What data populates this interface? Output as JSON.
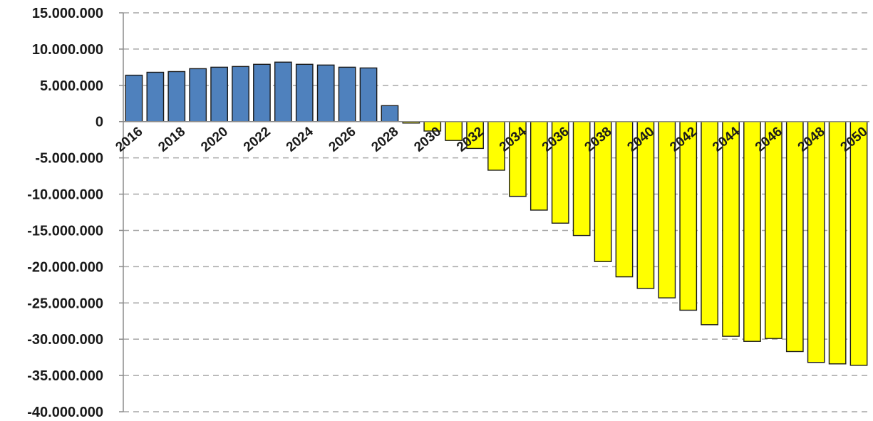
{
  "chart_data": {
    "type": "bar",
    "title": "",
    "xlabel": "",
    "ylabel": "",
    "ylim": [
      -40000000,
      15000000
    ],
    "yticks": [
      15000000,
      10000000,
      5000000,
      0,
      -5000000,
      -10000000,
      -15000000,
      -20000000,
      -25000000,
      -30000000,
      -35000000,
      -40000000
    ],
    "ytick_labels": [
      "15.000.000",
      "10.000.000",
      "5.000.000",
      "0",
      "-5.000.000",
      "-10.000.000",
      "-15.000.000",
      "-20.000.000",
      "-25.000.000",
      "-30.000.000",
      "-35.000.000",
      "-40.000.000"
    ],
    "xtick_labels": [
      "2016",
      "2018",
      "2020",
      "2022",
      "2024",
      "2026",
      "2028",
      "2030",
      "2032",
      "2034",
      "2036",
      "2038",
      "2040",
      "2042",
      "2044",
      "2046",
      "2048",
      "2050"
    ],
    "grid": true,
    "legend": "none",
    "positive_color": "#4f81bd",
    "negative_color": "#ffff00",
    "categories": [
      "2016",
      "2017",
      "2018",
      "2019",
      "2020",
      "2021",
      "2022",
      "2023",
      "2024",
      "2025",
      "2026",
      "2027",
      "2028",
      "2029",
      "2030",
      "2031",
      "2032",
      "2033",
      "2034",
      "2035",
      "2036",
      "2037",
      "2038",
      "2039",
      "2040",
      "2041",
      "2042",
      "2043",
      "2044",
      "2045",
      "2046",
      "2047",
      "2048",
      "2049",
      "2050"
    ],
    "values": [
      6400000,
      6800000,
      6900000,
      7300000,
      7500000,
      7600000,
      7900000,
      8200000,
      7900000,
      7800000,
      7500000,
      7400000,
      2200000,
      -200000,
      -1300000,
      -2600000,
      -3700000,
      -6700000,
      -10300000,
      -12200000,
      -14000000,
      -15700000,
      -19300000,
      -21400000,
      -23000000,
      -24300000,
      -26000000,
      -28000000,
      -29600000,
      -30300000,
      -29900000,
      -31700000,
      -33200000,
      -33400000,
      -33600000
    ]
  }
}
